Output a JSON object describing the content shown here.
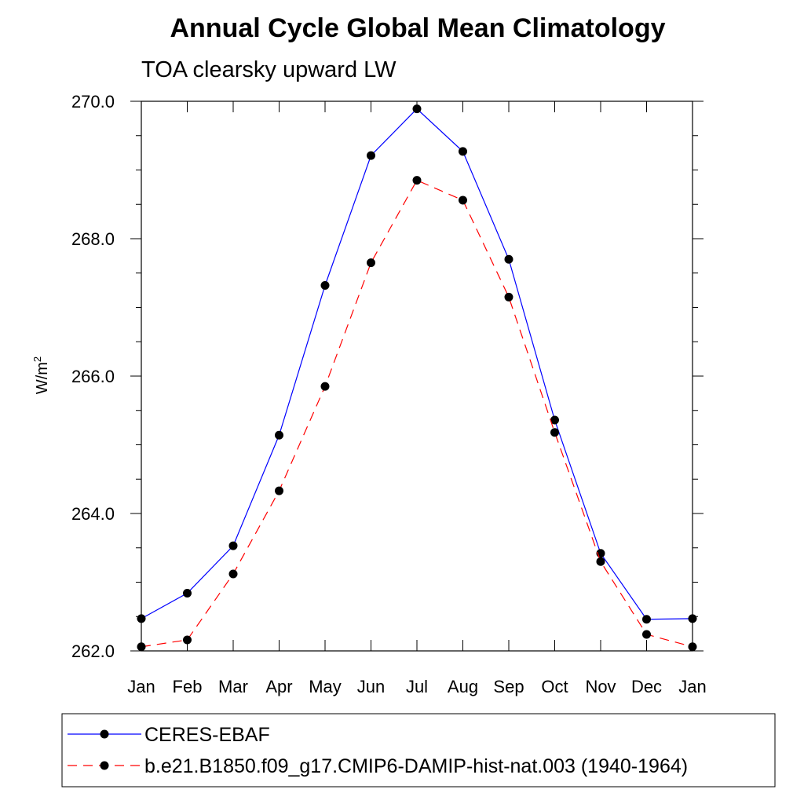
{
  "chart_data": {
    "type": "line",
    "title": "Annual Cycle Global Mean Climatology",
    "subtitle": "TOA clearsky upward LW",
    "ylabel_base": "W/m",
    "ylabel_sup": "2",
    "x": [
      "Jan",
      "Feb",
      "Mar",
      "Apr",
      "May",
      "Jun",
      "Jul",
      "Aug",
      "Sep",
      "Oct",
      "Nov",
      "Dec",
      "Jan"
    ],
    "ylim": [
      262.0,
      270.0
    ],
    "yticks": [
      "262.0",
      "264.0",
      "266.0",
      "268.0",
      "270.0"
    ],
    "grid": false,
    "legend_position": "bottom",
    "series": [
      {
        "name": "CERES-EBAF",
        "color": "#0000ff",
        "dash": "solid",
        "values": [
          262.47,
          262.84,
          263.53,
          265.14,
          267.32,
          269.21,
          269.89,
          269.27,
          267.7,
          265.36,
          263.42,
          262.46,
          262.47
        ]
      },
      {
        "name": "b.e21.B1850.f09_g17.CMIP6-DAMIP-hist-nat.003 (1940-1964)",
        "color": "#ff0000",
        "dash": "dashed",
        "values": [
          262.06,
          262.16,
          263.12,
          264.33,
          265.85,
          267.65,
          268.85,
          268.56,
          267.15,
          265.18,
          263.3,
          262.24,
          262.06
        ]
      }
    ]
  }
}
